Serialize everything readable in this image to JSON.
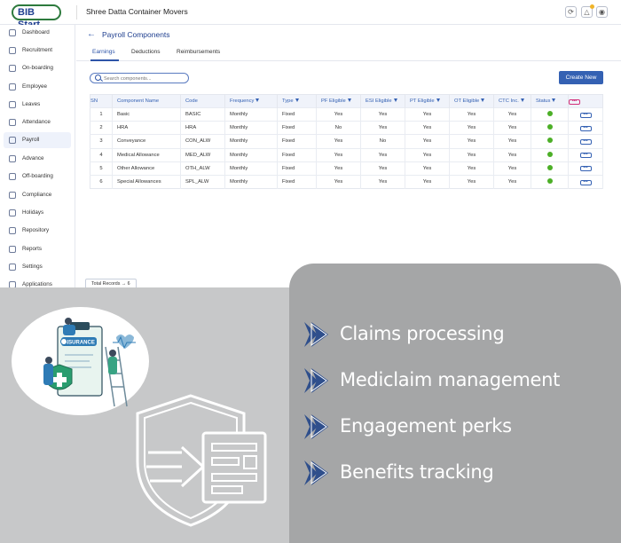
{
  "app": {
    "logo_text": "BIB Start",
    "company": "Shree Datta Container Movers"
  },
  "sidebar": {
    "items": [
      {
        "label": "Dashboard",
        "icon": "dashboard-icon"
      },
      {
        "label": "Recruitment",
        "icon": "recruitment-icon"
      },
      {
        "label": "On-boarding",
        "icon": "onboarding-icon"
      },
      {
        "label": "Employee",
        "icon": "employee-icon"
      },
      {
        "label": "Leaves",
        "icon": "leaves-icon"
      },
      {
        "label": "Attendance",
        "icon": "attendance-icon"
      },
      {
        "label": "Payroll",
        "icon": "payroll-icon"
      },
      {
        "label": "Advance",
        "icon": "advance-icon"
      },
      {
        "label": "Off-boarding",
        "icon": "offboarding-icon"
      },
      {
        "label": "Compliance",
        "icon": "compliance-icon"
      },
      {
        "label": "Holidays",
        "icon": "holidays-icon"
      },
      {
        "label": "Repository",
        "icon": "repository-icon"
      },
      {
        "label": "Reports",
        "icon": "reports-icon"
      },
      {
        "label": "Settings",
        "icon": "settings-icon"
      },
      {
        "label": "Applications",
        "icon": "applications-icon"
      }
    ],
    "active": "Payroll"
  },
  "page": {
    "title": "Payroll Components",
    "tabs": [
      "Earnings",
      "Deductions",
      "Reimbursements"
    ],
    "active_tab": "Earnings",
    "search_placeholder": "Search components...",
    "create_button": "Create New",
    "total_records": "Total Records → 6"
  },
  "table": {
    "headers": [
      "SN",
      "Component Name",
      "Code",
      "Frequency",
      "Type",
      "PF Eligible",
      "ESI Eligible",
      "PT Eligible",
      "OT Eligible",
      "CTC Inc.",
      "Status"
    ],
    "rows": [
      {
        "sn": "1",
        "name": "Basic",
        "code": "BASIC",
        "frequency": "Monthly",
        "type": "Fixed",
        "pf": "Yes",
        "esi": "Yes",
        "pt": "Yes",
        "ot": "Yes",
        "ctc": "Yes"
      },
      {
        "sn": "2",
        "name": "HRA",
        "code": "HRA",
        "frequency": "Monthly",
        "type": "Fixed",
        "pf": "No",
        "esi": "Yes",
        "pt": "Yes",
        "ot": "Yes",
        "ctc": "Yes"
      },
      {
        "sn": "3",
        "name": "Conveyance",
        "code": "CON_ALW",
        "frequency": "Monthly",
        "type": "Fixed",
        "pf": "Yes",
        "esi": "No",
        "pt": "Yes",
        "ot": "Yes",
        "ctc": "Yes"
      },
      {
        "sn": "4",
        "name": "Medical Allowance",
        "code": "MED_ALW",
        "frequency": "Monthly",
        "type": "Fixed",
        "pf": "Yes",
        "esi": "Yes",
        "pt": "Yes",
        "ot": "Yes",
        "ctc": "Yes"
      },
      {
        "sn": "5",
        "name": "Other Allowance",
        "code": "OTH_ALW",
        "frequency": "Monthly",
        "type": "Fixed",
        "pf": "Yes",
        "esi": "Yes",
        "pt": "Yes",
        "ot": "Yes",
        "ctc": "Yes"
      },
      {
        "sn": "6",
        "name": "Special Allowances",
        "code": "SPL_ALW",
        "frequency": "Monthly",
        "type": "Fixed",
        "pf": "Yes",
        "esi": "Yes",
        "pt": "Yes",
        "ot": "Yes",
        "ctc": "Yes"
      }
    ]
  },
  "promo": {
    "illustration_text": "INSURANCE",
    "features": [
      "Claims processing",
      "Mediclaim management",
      "Engagement perks",
      "Benefits tracking"
    ]
  },
  "colors": {
    "brand_blue": "#3461b3",
    "status_active": "#4caf27",
    "promo_card": "#a5a6a7",
    "lower_bg": "#c7c8c9",
    "chevron": "#2f4f8c"
  }
}
